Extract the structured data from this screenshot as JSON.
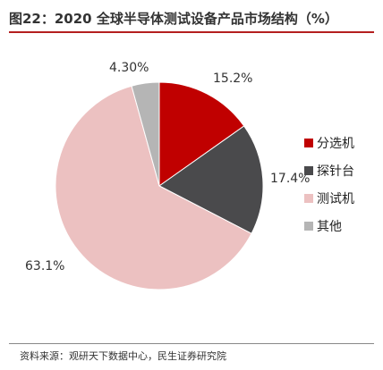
{
  "header": {
    "title": "图22：2020 全球半导体测试设备产品市场结构（%）"
  },
  "footer": {
    "source": "资料来源：观研天下数据中心，民生证券研究院"
  },
  "chart_data": {
    "type": "pie",
    "title": "图22：2020 全球半导体测试设备产品市场结构（%）",
    "legend_position": "right",
    "slices": [
      {
        "name": "分选机",
        "value": 15.2,
        "label": "15.2%",
        "color": "#c00000"
      },
      {
        "name": "探针台",
        "value": 17.4,
        "label": "17.4%",
        "color": "#4a4a4c"
      },
      {
        "name": "测试机",
        "value": 63.1,
        "label": "63.1%",
        "color": "#ecc1c1"
      },
      {
        "name": "其他",
        "value": 4.3,
        "label": "4.30%",
        "color": "#b5b5b5"
      }
    ]
  }
}
